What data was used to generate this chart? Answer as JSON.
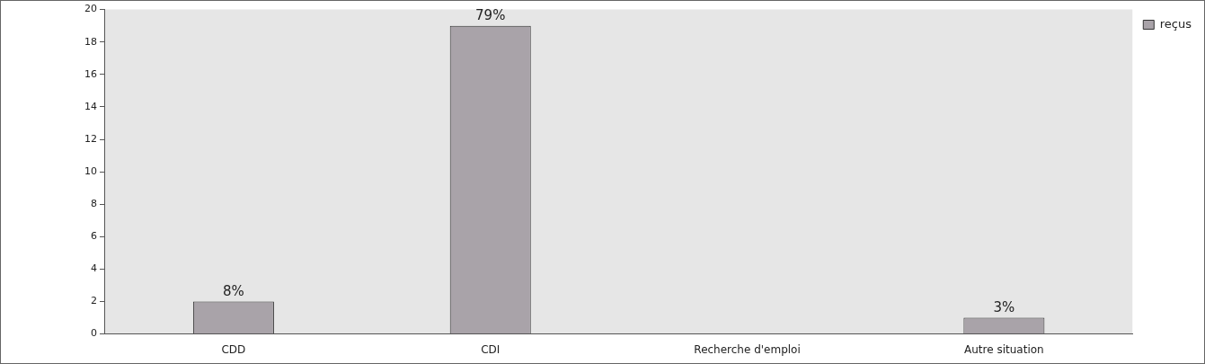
{
  "chart_data": {
    "type": "bar",
    "categories": [
      "CDD",
      "CDI",
      "Recherche d'emploi",
      "Autre situation"
    ],
    "series": [
      {
        "name": "reçus",
        "color": "#a9a3a9",
        "values": [
          2,
          19,
          0,
          1
        ]
      }
    ],
    "annotations": [
      {
        "text": "8%",
        "x": "CDD",
        "y": 2
      },
      {
        "text": "79%",
        "x": "CDI",
        "y": 19
      },
      {
        "text": "3%",
        "x": "Autre situation",
        "y": 1
      }
    ],
    "ylim": [
      0,
      20
    ],
    "yticks": [
      0,
      2,
      4,
      6,
      8,
      10,
      12,
      14,
      16,
      18,
      20
    ],
    "grid": false,
    "legend": "top right"
  }
}
